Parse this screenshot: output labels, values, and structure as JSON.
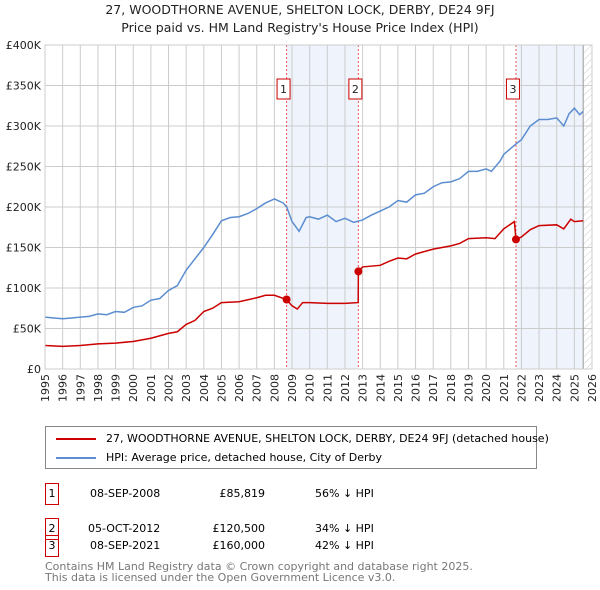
{
  "chart_data": {
    "type": "line",
    "title": "27, WOODTHORNE AVENUE, SHELTON LOCK, DERBY, DE24 9FJ",
    "subtitle": "Price paid vs. HM Land Registry's House Price Index (HPI)",
    "xlim": [
      1995,
      2026
    ],
    "ylim": [
      0,
      400000
    ],
    "y_ticks": [
      0,
      50000,
      100000,
      150000,
      200000,
      250000,
      300000,
      350000,
      400000
    ],
    "y_tick_labels": [
      "£0",
      "£50K",
      "£100K",
      "£150K",
      "£200K",
      "£250K",
      "£300K",
      "£350K",
      "£400K"
    ],
    "x_ticks": [
      "1995",
      "1996",
      "1997",
      "1998",
      "1999",
      "2000",
      "2001",
      "2002",
      "2003",
      "2004",
      "2005",
      "2006",
      "2007",
      "2008",
      "2009",
      "2010",
      "2011",
      "2012",
      "2013",
      "2014",
      "2015",
      "2016",
      "2017",
      "2018",
      "2019",
      "2020",
      "2021",
      "2022",
      "2023",
      "2024",
      "2025",
      "2026"
    ],
    "grid": true,
    "shaded_ranges": [
      [
        2008.69,
        2012.76
      ],
      [
        2021.69,
        2025.5
      ]
    ],
    "hatch_from": 2025.5,
    "series": [
      {
        "name": "27, WOODTHORNE AVENUE, SHELTON LOCK, DERBY, DE24 9FJ (detached house)",
        "color": "#cc0000",
        "x": [
          1995,
          1996,
          1997,
          1998,
          1999,
          2000,
          2001,
          2002,
          2002.5,
          2003,
          2003.5,
          2004,
          2004.5,
          2005,
          2006,
          2007,
          2007.5,
          2008,
          2008.69,
          2009,
          2009.3,
          2009.6,
          2010,
          2011,
          2012,
          2012.75,
          2012.76,
          2013,
          2014,
          2014.5,
          2015,
          2015.5,
          2016,
          2017,
          2018,
          2018.5,
          2019,
          2020,
          2020.5,
          2021,
          2021.6,
          2021.69,
          2022,
          2022.5,
          2023,
          2024,
          2024.4,
          2024.8,
          2025,
          2025.5
        ],
        "y": [
          29000,
          28000,
          29000,
          31000,
          32000,
          34000,
          38000,
          44000,
          46000,
          55000,
          60000,
          71000,
          75000,
          82000,
          83000,
          88000,
          91000,
          91000,
          85819,
          78000,
          74000,
          82000,
          82000,
          81000,
          81000,
          82000,
          120500,
          126000,
          128000,
          133000,
          137000,
          136000,
          142000,
          148000,
          152000,
          155000,
          161000,
          162000,
          161000,
          173000,
          182000,
          160000,
          163000,
          172000,
          177000,
          178000,
          173000,
          185000,
          182000,
          183000
        ]
      },
      {
        "name": "HPI: Average price, detached house, City of Derby",
        "color": "#5b8dd0",
        "x": [
          1995,
          1995.5,
          1996,
          1996.5,
          1997,
          1997.5,
          1998,
          1998.5,
          1999,
          1999.5,
          2000,
          2000.5,
          2001,
          2001.5,
          2002,
          2002.5,
          2003,
          2003.5,
          2004,
          2004.5,
          2005,
          2005.5,
          2006,
          2006.5,
          2007,
          2007.5,
          2008,
          2008.5,
          2008.7,
          2009,
          2009.4,
          2009.8,
          2010,
          2010.5,
          2011,
          2011.5,
          2012,
          2012.5,
          2013,
          2013.5,
          2014,
          2014.5,
          2015,
          2015.5,
          2016,
          2016.5,
          2017,
          2017.5,
          2018,
          2018.5,
          2019,
          2019.5,
          2020,
          2020.3,
          2020.8,
          2021,
          2021.7,
          2022,
          2022.5,
          2023,
          2023.5,
          2024,
          2024.4,
          2024.7,
          2025,
          2025.3,
          2025.5
        ],
        "y": [
          64000,
          63000,
          62000,
          63000,
          64000,
          65000,
          68000,
          67000,
          71000,
          70000,
          76000,
          78000,
          85000,
          87000,
          97000,
          103000,
          122000,
          136000,
          150000,
          166000,
          183000,
          187000,
          188000,
          192000,
          198000,
          205000,
          210000,
          205000,
          200000,
          182000,
          170000,
          187000,
          188000,
          185000,
          190000,
          182000,
          186000,
          181000,
          184000,
          190000,
          195000,
          200000,
          208000,
          206000,
          215000,
          217000,
          225000,
          230000,
          231000,
          235000,
          244000,
          244000,
          247000,
          244000,
          257000,
          265000,
          278000,
          283000,
          300000,
          308000,
          308000,
          310000,
          300000,
          315000,
          322000,
          314000,
          318000
        ]
      }
    ],
    "markers": [
      {
        "label": "1",
        "x": 2008.69,
        "y": 85819
      },
      {
        "label": "2",
        "x": 2012.76,
        "y": 120500
      },
      {
        "label": "3",
        "x": 2021.69,
        "y": 160000
      }
    ]
  },
  "transactions": [
    {
      "num": "1",
      "date": "08-SEP-2008",
      "price": "£85,819",
      "hpi": "56% ↓ HPI"
    },
    {
      "num": "2",
      "date": "05-OCT-2012",
      "price": "£120,500",
      "hpi": "34% ↓ HPI"
    },
    {
      "num": "3",
      "date": "08-SEP-2021",
      "price": "£160,000",
      "hpi": "42% ↓ HPI"
    }
  ],
  "footer": {
    "line1": "Contains HM Land Registry data © Crown copyright and database right 2025.",
    "line2": "This data is licensed under the Open Government Licence v3.0."
  }
}
